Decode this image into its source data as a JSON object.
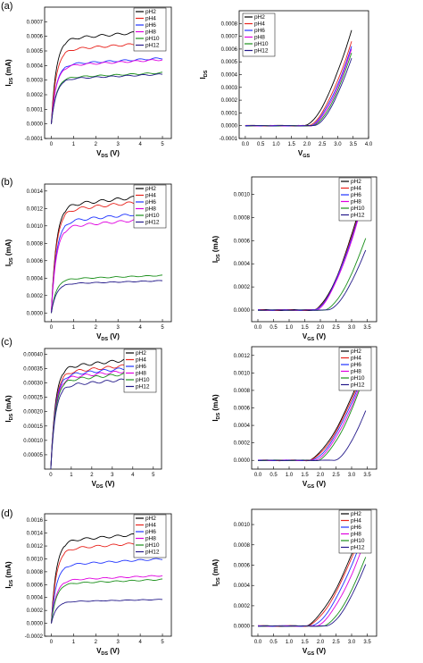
{
  "figure": {
    "colors": {
      "pH2": "#000000",
      "pH4": "#e8231d",
      "pH6": "#1f33ff",
      "pH8": "#e000e0",
      "pH10": "#1a8f1a",
      "pH12": "#241a8a"
    }
  },
  "chart_data": [
    {
      "panel": "(a)",
      "side": "output",
      "type": "line",
      "xlabel": "V",
      "xlabel_sub": "DS",
      "xlabel_unit": " (V)",
      "ylabel": "I",
      "ylabel_sub": "DS",
      "ylabel_unit": " (mA)",
      "xlim": [
        -0.3,
        5.4
      ],
      "ylim": [
        -0.0001,
        0.0008
      ],
      "xticks": [
        "0",
        "1",
        "2",
        "3",
        "4",
        "5"
      ],
      "yticks": [
        "-0.0001",
        "0.0000",
        "0.0001",
        "0.0002",
        "0.0003",
        "0.0004",
        "0.0005",
        "0.0006",
        "0.0007"
      ],
      "legend": "top-right",
      "series": [
        {
          "name": "pH2",
          "sat": 0.00064
        },
        {
          "name": "pH4",
          "sat": 0.00056
        },
        {
          "name": "pH6",
          "sat": 0.00045
        },
        {
          "name": "pH8",
          "sat": 0.00044
        },
        {
          "name": "pH10",
          "sat": 0.00035
        },
        {
          "name": "pH12",
          "sat": 0.00034
        }
      ]
    },
    {
      "panel": "(a)",
      "side": "transfer",
      "type": "line",
      "xlabel": "V",
      "xlabel_sub": "GS",
      "xlabel_unit": "",
      "ylabel": "I",
      "ylabel_sub": "DS",
      "ylabel_unit": "",
      "xlim": [
        -0.2,
        4.0
      ],
      "ylim": [
        -0.0001,
        0.0009
      ],
      "xticks": [
        "0.0",
        "0.5",
        "1.0",
        "1.5",
        "2.0",
        "2.5",
        "3.0",
        "3.5",
        "4.0"
      ],
      "yticks": [
        "-0.0001",
        "0.0000",
        "0.0001",
        "0.0002",
        "0.0003",
        "0.0004",
        "0.0005",
        "0.0006",
        "0.0007",
        "0.0008"
      ],
      "legend": "top-left",
      "series": [
        {
          "name": "pH2",
          "vth": 1.95,
          "max": 0.00075
        },
        {
          "name": "pH4",
          "vth": 2.05,
          "max": 0.00066
        },
        {
          "name": "pH6",
          "vth": 2.1,
          "max": 0.00062
        },
        {
          "name": "pH8",
          "vth": 2.15,
          "max": 0.0006
        },
        {
          "name": "pH10",
          "vth": 2.2,
          "max": 0.00057
        },
        {
          "name": "pH12",
          "vth": 2.25,
          "max": 0.00053
        }
      ]
    },
    {
      "panel": "(b)",
      "side": "output",
      "type": "line",
      "xlabel": "V",
      "xlabel_sub": "DS",
      "xlabel_unit": " (V)",
      "ylabel": "I",
      "ylabel_sub": "DS",
      "ylabel_unit": " (mA)",
      "xlim": [
        -0.3,
        5.4
      ],
      "ylim": [
        -0.0001,
        0.00148
      ],
      "xticks": [
        "0",
        "1",
        "2",
        "3",
        "4",
        "5"
      ],
      "yticks": [
        "0.0000",
        "0.0002",
        "0.0004",
        "0.0006",
        "0.0008",
        "0.0010",
        "0.0012",
        "0.0014"
      ],
      "legend": "top-right",
      "series": [
        {
          "name": "pH2",
          "sat": 0.00136
        },
        {
          "name": "pH4",
          "sat": 0.0013
        },
        {
          "name": "pH6",
          "sat": 0.00116
        },
        {
          "name": "pH8",
          "sat": 0.00109
        },
        {
          "name": "pH10",
          "sat": 0.00043
        },
        {
          "name": "pH12",
          "sat": 0.00037
        }
      ]
    },
    {
      "panel": "(b)",
      "side": "transfer",
      "type": "line",
      "xlabel": "V",
      "xlabel_sub": "GS",
      "xlabel_unit": " (V)",
      "ylabel": "I",
      "ylabel_sub": "DS",
      "ylabel_unit": " (mA)",
      "xlim": [
        -0.2,
        3.8
      ],
      "ylim": [
        -0.0001,
        0.00115
      ],
      "xticks": [
        "0.0",
        "0.5",
        "1.0",
        "1.5",
        "2.0",
        "2.5",
        "3.0",
        "3.5"
      ],
      "yticks": [
        "0.0000",
        "0.0002",
        "0.0004",
        "0.0006",
        "0.0008",
        "0.0010"
      ],
      "legend": "top-right",
      "series": [
        {
          "name": "pH2",
          "vth": 1.8,
          "max": 0.00108
        },
        {
          "name": "pH4",
          "vth": 1.82,
          "max": 0.00106
        },
        {
          "name": "pH6",
          "vth": 1.82,
          "max": 0.00104
        },
        {
          "name": "pH8",
          "vth": 1.85,
          "max": 0.00102
        },
        {
          "name": "pH10",
          "vth": 2.15,
          "max": 0.00062
        },
        {
          "name": "pH12",
          "vth": 2.25,
          "max": 0.00052
        }
      ]
    },
    {
      "panel": "(c)",
      "side": "output",
      "type": "line",
      "xlabel": "V",
      "xlabel_sub": "DS",
      "xlabel_unit": " (V)",
      "ylabel": "I",
      "ylabel_sub": "DS",
      "ylabel_unit": " (mA)",
      "xlim": [
        -0.3,
        5.4
      ],
      "ylim": [
        0.0,
        0.00042
      ],
      "xticks": [
        "0",
        "1",
        "2",
        "3",
        "4",
        "5"
      ],
      "yticks": [
        "0.00005",
        "0.00010",
        "0.00015",
        "0.00020",
        "0.00025",
        "0.00030",
        "0.00035",
        "0.00040"
      ],
      "legend": "top-right",
      "series": [
        {
          "name": "pH2",
          "sat": 0.00039
        },
        {
          "name": "pH4",
          "sat": 0.00037
        },
        {
          "name": "pH6",
          "sat": 0.00036
        },
        {
          "name": "pH8",
          "sat": 0.00035
        },
        {
          "name": "pH10",
          "sat": 0.00034
        },
        {
          "name": "pH12",
          "sat": 0.00032
        }
      ]
    },
    {
      "panel": "(c)",
      "side": "transfer",
      "type": "line",
      "xlabel": "V",
      "xlabel_sub": "GS",
      "xlabel_unit": " (V)",
      "ylabel": "I",
      "ylabel_sub": "DS",
      "ylabel_unit": " (mA)",
      "xlim": [
        -0.2,
        3.8
      ],
      "ylim": [
        -0.0001,
        0.0013
      ],
      "xticks": [
        "0.0",
        "0.5",
        "1.0",
        "1.5",
        "2.0",
        "2.5",
        "3.0",
        "3.5"
      ],
      "yticks": [
        "0.0000",
        "0.0002",
        "0.0004",
        "0.0006",
        "0.0008",
        "0.0010",
        "0.0012"
      ],
      "legend": "top-right",
      "series": [
        {
          "name": "pH2",
          "vth": 1.6,
          "max": 0.00113
        },
        {
          "name": "pH4",
          "vth": 1.65,
          "max": 0.0011
        },
        {
          "name": "pH6",
          "vth": 1.72,
          "max": 0.00107
        },
        {
          "name": "pH8",
          "vth": 1.8,
          "max": 0.00103
        },
        {
          "name": "pH10",
          "vth": 1.9,
          "max": 0.001
        },
        {
          "name": "pH12",
          "vth": 2.45,
          "max": 0.00057
        }
      ]
    },
    {
      "panel": "(d)",
      "side": "output",
      "type": "line",
      "xlabel": "V",
      "xlabel_sub": "DS",
      "xlabel_unit": " (V)",
      "ylabel": "I",
      "ylabel_sub": "DS",
      "ylabel_unit": " (mA)",
      "xlim": [
        -0.3,
        5.4
      ],
      "ylim": [
        -0.0002,
        0.0017
      ],
      "xticks": [
        "0",
        "1",
        "2",
        "3",
        "4",
        "5"
      ],
      "yticks": [
        "-0.0002",
        "0.0000",
        "0.0002",
        "0.0004",
        "0.0006",
        "0.0008",
        "0.0010",
        "0.0012",
        "0.0014",
        "0.0016"
      ],
      "legend": "top-right",
      "series": [
        {
          "name": "pH2",
          "sat": 0.00141
        },
        {
          "name": "pH4",
          "sat": 0.00127
        },
        {
          "name": "pH6",
          "sat": 0.001
        },
        {
          "name": "pH8",
          "sat": 0.00074
        },
        {
          "name": "pH10",
          "sat": 0.00068
        },
        {
          "name": "pH12",
          "sat": 0.00037
        }
      ]
    },
    {
      "panel": "(d)",
      "side": "transfer",
      "type": "line",
      "xlabel": "V",
      "xlabel_sub": "GS",
      "xlabel_unit": " (V)",
      "ylabel": "I",
      "ylabel_sub": "DS",
      "ylabel_unit": " (mA)",
      "xlim": [
        -0.2,
        3.8
      ],
      "ylim": [
        -0.0001,
        0.00115
      ],
      "xticks": [
        "0.0",
        "0.5",
        "1.0",
        "1.5",
        "2.0",
        "2.5",
        "3.0",
        "3.5"
      ],
      "yticks": [
        "0.0000",
        "0.0002",
        "0.0004",
        "0.0006",
        "0.0008",
        "0.0010"
      ],
      "legend": "top-right",
      "series": [
        {
          "name": "pH2",
          "vth": 1.5,
          "max": 0.00107
        },
        {
          "name": "pH4",
          "vth": 1.58,
          "max": 0.00104
        },
        {
          "name": "pH6",
          "vth": 1.72,
          "max": 0.00097
        },
        {
          "name": "pH8",
          "vth": 1.85,
          "max": 0.00086
        },
        {
          "name": "pH10",
          "vth": 2.1,
          "max": 0.00068
        },
        {
          "name": "pH12",
          "vth": 2.2,
          "max": 0.00061
        }
      ]
    }
  ]
}
